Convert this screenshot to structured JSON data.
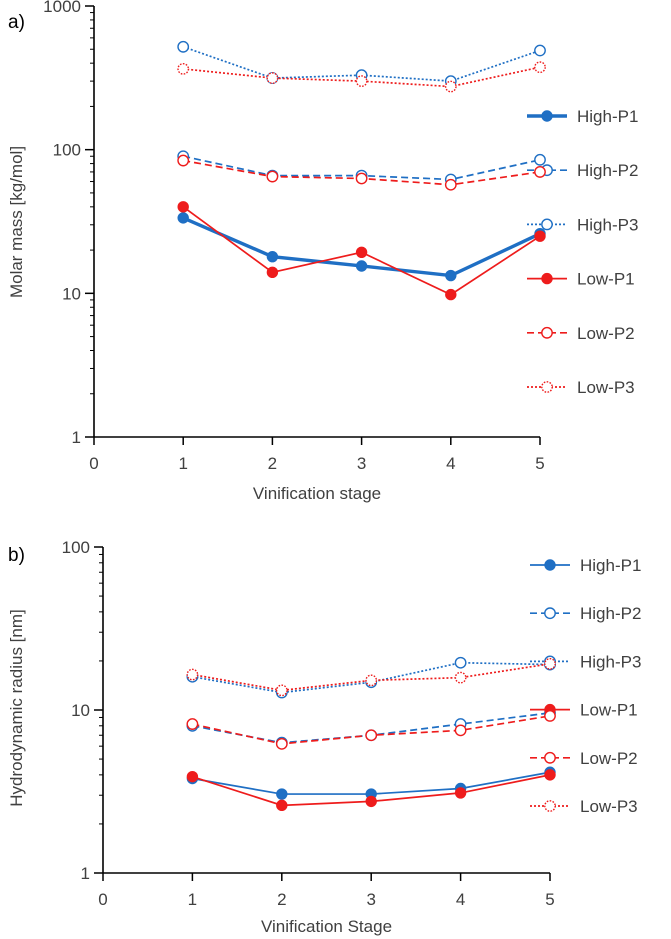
{
  "colors": {
    "high": "#1f6fc4",
    "low": "#ee1c1c",
    "axis": "#000000",
    "text": "#404040"
  },
  "chart_data": [
    {
      "panel_label": "a)",
      "type": "line",
      "scale": "log",
      "ylabel": "Molar mass [kg/mol]",
      "xlabel": "Vinification stage",
      "xlim": [
        0,
        5
      ],
      "ylim": [
        1,
        1000
      ],
      "x_ticks": [
        "0",
        "1",
        "2",
        "3",
        "4",
        "5"
      ],
      "y_ticks": [
        "1",
        "10",
        "100",
        "1000"
      ],
      "y_tick_values": [
        1,
        10,
        100,
        1000
      ],
      "x": [
        1,
        2,
        3,
        4,
        5
      ],
      "legend_position": "right",
      "series": [
        {
          "name": "High-P1",
          "color": "high",
          "dash": "solid",
          "bold": true,
          "marker": "filled",
          "values": [
            33.5,
            18,
            15.5,
            13.3,
            26
          ]
        },
        {
          "name": "High-P2",
          "color": "high",
          "dash": "dashed",
          "marker": "open",
          "values": [
            90,
            66,
            66,
            62,
            85
          ]
        },
        {
          "name": "High-P3",
          "color": "high",
          "dash": "dotted",
          "marker": "open",
          "values": [
            520,
            315,
            330,
            300,
            490
          ]
        },
        {
          "name": "Low-P1",
          "color": "low",
          "dash": "solid",
          "marker": "filled",
          "values": [
            40,
            14,
            19.3,
            9.8,
            25
          ]
        },
        {
          "name": "Low-P2",
          "color": "low",
          "dash": "dashed",
          "marker": "open",
          "values": [
            84,
            65,
            63,
            57,
            70
          ]
        },
        {
          "name": "Low-P3",
          "color": "low",
          "dash": "dotted",
          "marker": "dotted",
          "values": [
            365,
            315,
            300,
            275,
            375
          ]
        }
      ]
    },
    {
      "panel_label": "b)",
      "type": "line",
      "scale": "log",
      "ylabel": "Hydrodynamic radius [nm]",
      "xlabel": "Vinification Stage",
      "xlim": [
        0,
        5
      ],
      "ylim": [
        1,
        100
      ],
      "x_ticks": [
        "0",
        "1",
        "2",
        "3",
        "4",
        "5"
      ],
      "y_ticks": [
        "1",
        "10",
        "100"
      ],
      "y_tick_values": [
        1,
        10,
        100
      ],
      "x": [
        1,
        2,
        3,
        4,
        5
      ],
      "legend_position": "right",
      "series": [
        {
          "name": "High-P1",
          "color": "high",
          "dash": "solid",
          "marker": "filled",
          "values": [
            3.8,
            3.05,
            3.05,
            3.3,
            4.15
          ]
        },
        {
          "name": "High-P2",
          "color": "high",
          "dash": "dashed",
          "marker": "open",
          "values": [
            8.0,
            6.3,
            7.0,
            8.2,
            9.6
          ]
        },
        {
          "name": "High-P3",
          "color": "high",
          "dash": "dotted",
          "marker": "open",
          "values": [
            16.0,
            12.8,
            14.8,
            19.5,
            19.0
          ]
        },
        {
          "name": "Low-P1",
          "color": "low",
          "dash": "solid",
          "marker": "filled",
          "values": [
            3.9,
            2.6,
            2.75,
            3.1,
            4.0
          ]
        },
        {
          "name": "Low-P2",
          "color": "low",
          "dash": "dashed",
          "marker": "open",
          "values": [
            8.2,
            6.2,
            7.0,
            7.5,
            9.2
          ]
        },
        {
          "name": "Low-P3",
          "color": "low",
          "dash": "dotted",
          "marker": "dotted",
          "values": [
            16.5,
            13.2,
            15.2,
            15.8,
            19.2
          ]
        }
      ]
    }
  ]
}
